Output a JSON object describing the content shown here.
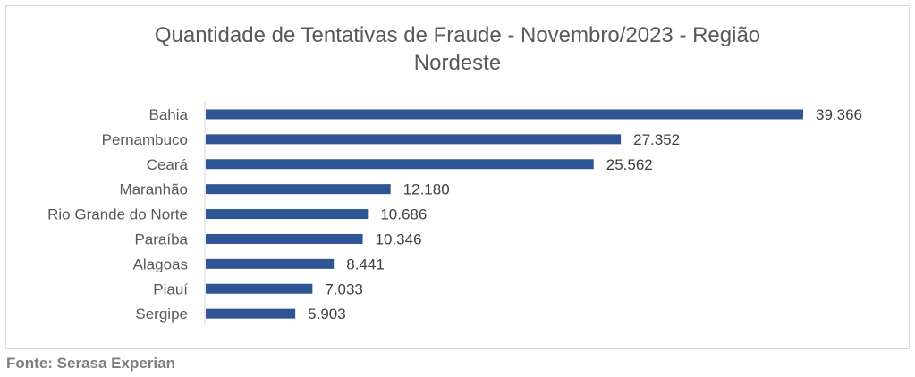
{
  "chart_data": {
    "type": "bar",
    "orientation": "horizontal",
    "title_lines": [
      "Quantidade de Tentativas de Fraude - Novembro/2023 - Região",
      "Nordeste"
    ],
    "categories": [
      "Bahia",
      "Pernambuco",
      "Ceará",
      "Maranhão",
      "Rio Grande do Norte",
      "Paraíba",
      "Alagoas",
      "Piauí",
      "Sergipe"
    ],
    "values": [
      39366,
      27352,
      25562,
      12180,
      10686,
      10346,
      8441,
      7033,
      5903
    ],
    "value_labels": [
      "39.366",
      "27.352",
      "25.562",
      "12.180",
      "10.686",
      "10.346",
      "8.441",
      "7.033",
      "5.903"
    ],
    "xlim": [
      0,
      40000
    ],
    "grid": false,
    "legend": false,
    "bar_color": "#2f5597"
  },
  "source": "Fonte: Serasa Experian"
}
